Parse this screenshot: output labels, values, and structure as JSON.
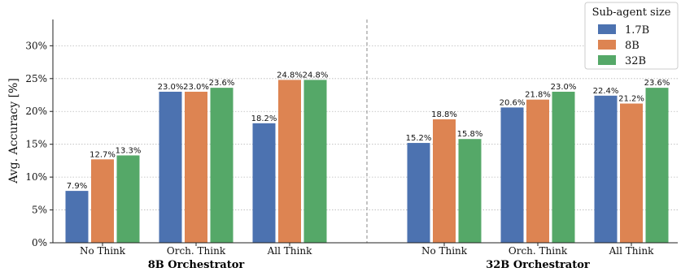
{
  "chart_data": {
    "type": "bar",
    "ylabel": "Avg. Accuracy [%]",
    "ylim": [
      0,
      34
    ],
    "yticks": [
      "0%",
      "5%",
      "10%",
      "15%",
      "20%",
      "25%",
      "30%"
    ],
    "grid": "horizontal dotted",
    "legend": {
      "title": "Sub-agent size",
      "placement": "top-right",
      "entries": [
        "1.7B",
        "8B",
        "32B"
      ]
    },
    "colors": {
      "1.7B": "#4c72b0",
      "8B": "#dd8452",
      "32B": "#55a868"
    },
    "groups": [
      {
        "title": "8B Orchestrator",
        "categories": [
          "No Think",
          "Orch. Think",
          "All Think"
        ],
        "series": [
          {
            "name": "1.7B",
            "values": [
              7.9,
              23.0,
              18.2
            ],
            "labels": [
              "7.9%",
              "23.0%",
              "18.2%"
            ]
          },
          {
            "name": "8B",
            "values": [
              12.7,
              23.0,
              24.8
            ],
            "labels": [
              "12.7%",
              "23.0%",
              "24.8%"
            ]
          },
          {
            "name": "32B",
            "values": [
              13.3,
              23.6,
              24.8
            ],
            "labels": [
              "13.3%",
              "23.6%",
              "24.8%"
            ]
          }
        ]
      },
      {
        "title": "32B Orchestrator",
        "categories": [
          "No Think",
          "Orch. Think",
          "All Think"
        ],
        "series": [
          {
            "name": "1.7B",
            "values": [
              15.2,
              20.6,
              22.4
            ],
            "labels": [
              "15.2%",
              "20.6%",
              "22.4%"
            ]
          },
          {
            "name": "8B",
            "values": [
              18.8,
              21.8,
              21.2
            ],
            "labels": [
              "18.8%",
              "21.8%",
              "21.2%"
            ]
          },
          {
            "name": "32B",
            "values": [
              15.8,
              23.0,
              23.6
            ],
            "labels": [
              "15.8%",
              "23.0%",
              "23.6%"
            ]
          }
        ]
      }
    ]
  }
}
